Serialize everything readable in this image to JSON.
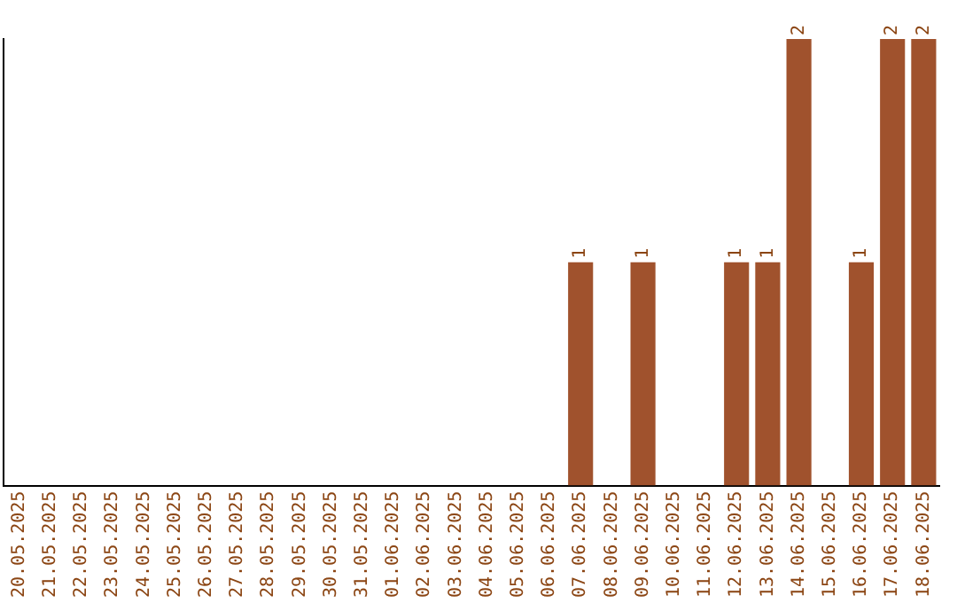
{
  "chart_data": {
    "type": "bar",
    "categories": [
      "20.05.2025",
      "21.05.2025",
      "22.05.2025",
      "23.05.2025",
      "24.05.2025",
      "25.05.2025",
      "26.05.2025",
      "27.05.2025",
      "28.05.2025",
      "29.05.2025",
      "30.05.2025",
      "31.05.2025",
      "01.06.2025",
      "02.06.2025",
      "03.06.2025",
      "04.06.2025",
      "05.06.2025",
      "06.06.2025",
      "07.06.2025",
      "08.06.2025",
      "09.06.2025",
      "10.06.2025",
      "11.06.2025",
      "12.06.2025",
      "13.06.2025",
      "14.06.2025",
      "15.06.2025",
      "16.06.2025",
      "17.06.2025",
      "18.06.2025"
    ],
    "values": [
      null,
      null,
      null,
      null,
      null,
      null,
      null,
      null,
      null,
      null,
      null,
      null,
      null,
      null,
      null,
      null,
      null,
      null,
      1,
      null,
      1,
      null,
      null,
      1,
      1,
      2,
      null,
      1,
      2,
      2
    ],
    "value_labels": [
      null,
      null,
      null,
      null,
      null,
      null,
      null,
      null,
      null,
      null,
      null,
      null,
      null,
      null,
      null,
      null,
      null,
      null,
      "1",
      null,
      "1",
      null,
      null,
      "1",
      "1",
      "2",
      null,
      "1",
      "2",
      "2"
    ],
    "ylim": [
      0,
      2
    ],
    "tick_labels": "x",
    "color": "#a0522d",
    "grid": false,
    "legend": false
  }
}
